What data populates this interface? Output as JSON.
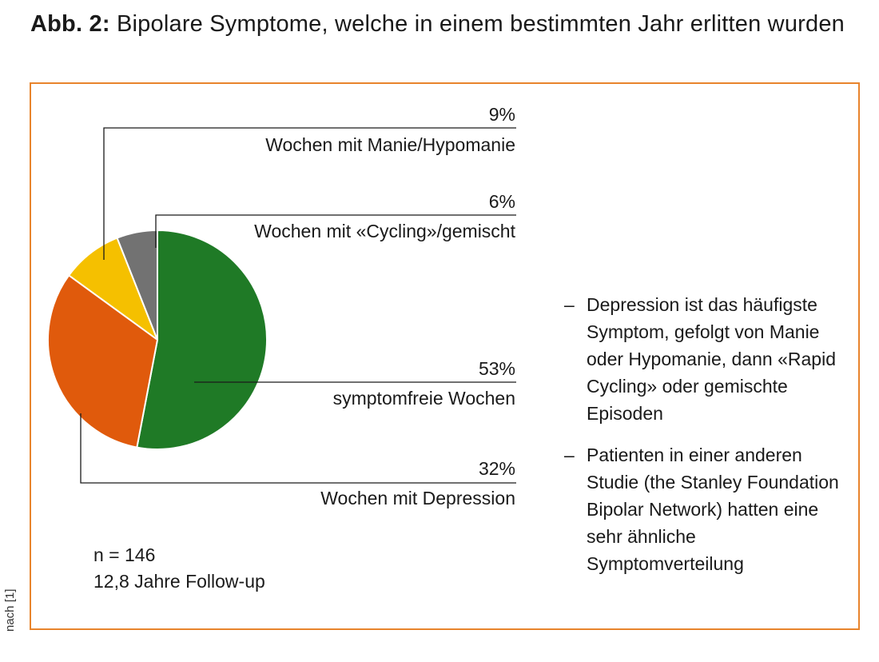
{
  "title": {
    "figure_label": "Abb. 2:",
    "text": "Bipolare Symptome, welche in einem bestimmten Jahr erlitten wurden"
  },
  "chart_data": {
    "type": "pie",
    "title": "Bipolare Symptome, welche in einem bestimmten Jahr erlitten wurden",
    "slices": [
      {
        "id": "mania",
        "label": "Wochen mit Manie/Hypomanie",
        "percent_label": "9%",
        "value": 9,
        "color": "#f5c000"
      },
      {
        "id": "cycling",
        "label": "Wochen mit «Cycling»/gemischt",
        "percent_label": "6%",
        "value": 6,
        "color": "#727272"
      },
      {
        "id": "free",
        "label": "symptomfreie Wochen",
        "percent_label": "53%",
        "value": 53,
        "color": "#1f7a26"
      },
      {
        "id": "depression",
        "label": "Wochen mit Depression",
        "percent_label": "32%",
        "value": 32,
        "color": "#e05a0c"
      }
    ]
  },
  "sample": {
    "n": "n = 146",
    "followup": "12,8 Jahre Follow-up"
  },
  "notes": [
    "Depression ist das häufigste Symptom, gefolgt von Manie oder Hypomanie, dann «Rapid Cycling» oder gemischte Episoden",
    "Patienten in einer anderen Studie (the Stanley Foun­dation Bipolar Network) hatten eine sehr ähnliche Symptomverteilung"
  ],
  "source": "nach [1]",
  "colors": {
    "frame": "#e8842c",
    "text": "#1a1a1a"
  }
}
